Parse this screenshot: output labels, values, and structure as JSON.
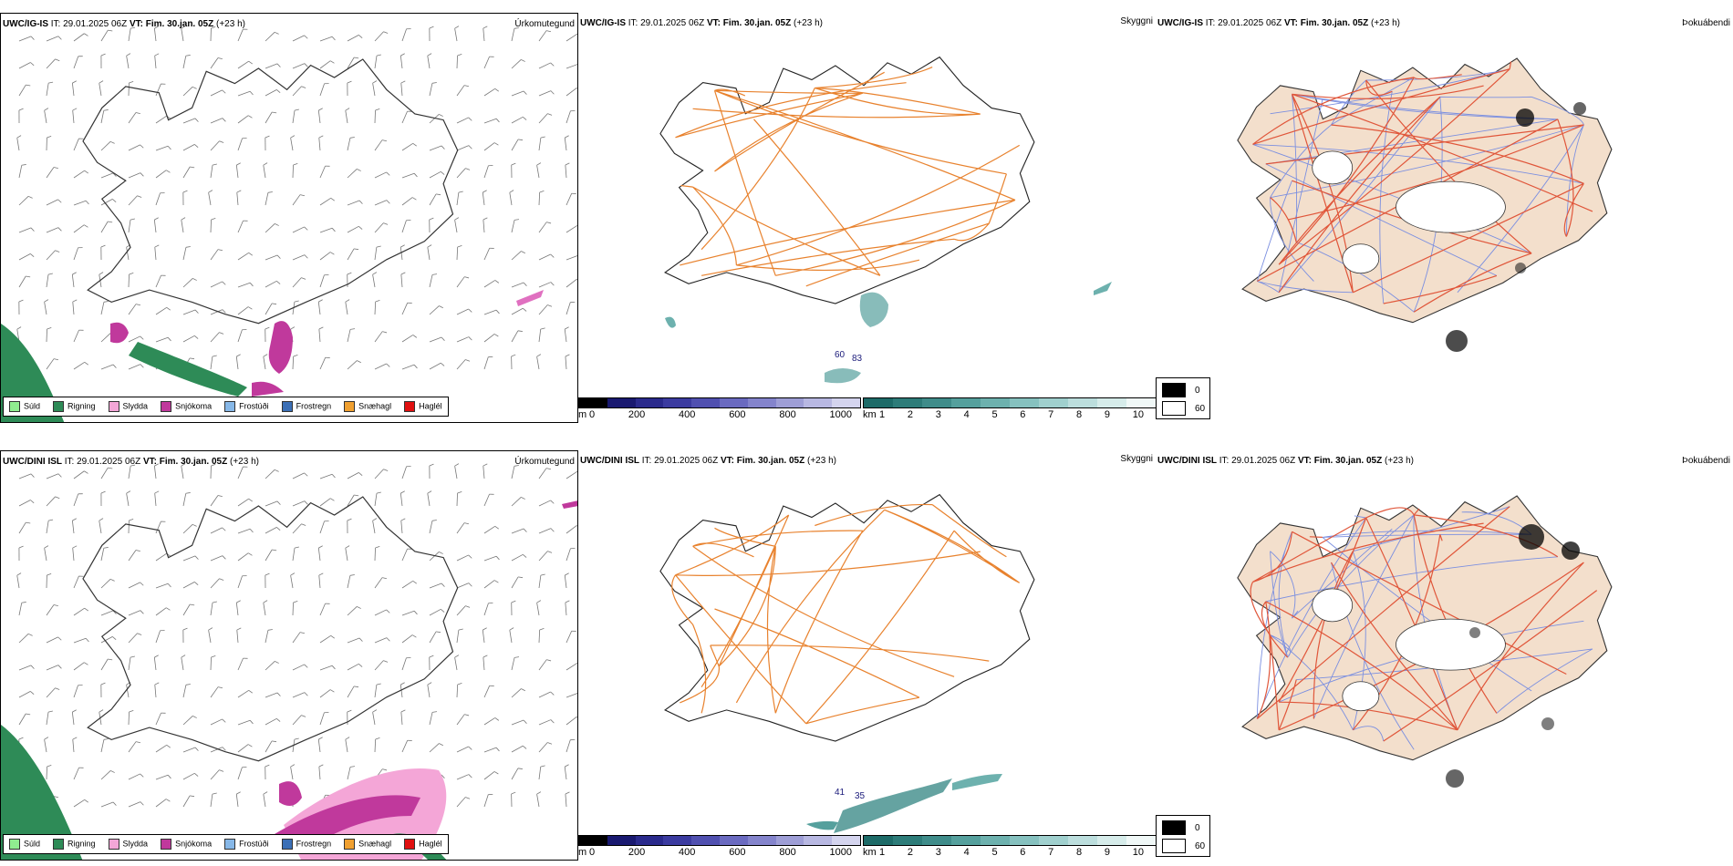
{
  "rows": [
    {
      "model_label": "UWC/IG-IS",
      "run_text": "IT: 29.01.2025 06Z",
      "vt_label": "VT: Fim. 30.jan. 05Z",
      "lead": "(+23 h)",
      "panels": {
        "precip": "Úrkomutegund",
        "visibility": "Skyggni",
        "fog": "Þokuábendi"
      }
    },
    {
      "model_label": "UWC/DINI ISL",
      "run_text": "IT: 29.01.2025 06Z",
      "vt_label": "VT: Fim. 30.jan. 05Z",
      "lead": "(+23 h)",
      "panels": {
        "precip": "Úrkomutegund",
        "visibility": "Skyggni",
        "fog": "Þokuábendi"
      }
    }
  ],
  "precip_legend": [
    {
      "label": "Súld",
      "color": "#90ee90"
    },
    {
      "label": "Rigning",
      "color": "#2e8b57"
    },
    {
      "label": "Slydda",
      "color": "#f4a6d7"
    },
    {
      "label": "Snjókoma",
      "color": "#c0399c"
    },
    {
      "label": "Frostúði",
      "color": "#87b8e8"
    },
    {
      "label": "Frostregn",
      "color": "#3b6fb6"
    },
    {
      "label": "Snæhagl",
      "color": "#f0a030"
    },
    {
      "label": "Haglél",
      "color": "#e01010"
    }
  ],
  "elevation_bar": {
    "unit": "m",
    "ticks": [
      "0",
      "200",
      "400",
      "600",
      "800",
      "1000"
    ],
    "colors": [
      "#000000",
      "#191970",
      "#2a2a8c",
      "#3b3ba0",
      "#5050b0",
      "#6a6ac0",
      "#8484cc",
      "#9e9ed6",
      "#b8b8e2",
      "#d4d4ee"
    ]
  },
  "visibility_bar": {
    "unit": "km",
    "ticks": [
      "1",
      "2",
      "3",
      "4",
      "5",
      "6",
      "7",
      "8",
      "9",
      "10"
    ],
    "colors": [
      "#1d6b68",
      "#2d7c79",
      "#3f8c8a",
      "#55a09d",
      "#6db1ae",
      "#86c1bf",
      "#a0d0ce",
      "#bcdedd",
      "#d6ecea",
      "#f0f8f7"
    ]
  },
  "fog_legend": [
    {
      "label": "0",
      "color": "#000000"
    },
    {
      "label": "60",
      "color": "#ffffff"
    }
  ],
  "visibility_markers": {
    "row1": [
      "60",
      "83"
    ],
    "row2": [
      "41",
      "35"
    ]
  },
  "colors": {
    "roads": "#e8822e",
    "fog_land": "#f3dfcc",
    "fog_roads": "#e0563a",
    "rivers": "#7b8fe0",
    "rain": "#2e8b57",
    "snow": "#c0399c",
    "sleet": "#f4a6d7"
  }
}
